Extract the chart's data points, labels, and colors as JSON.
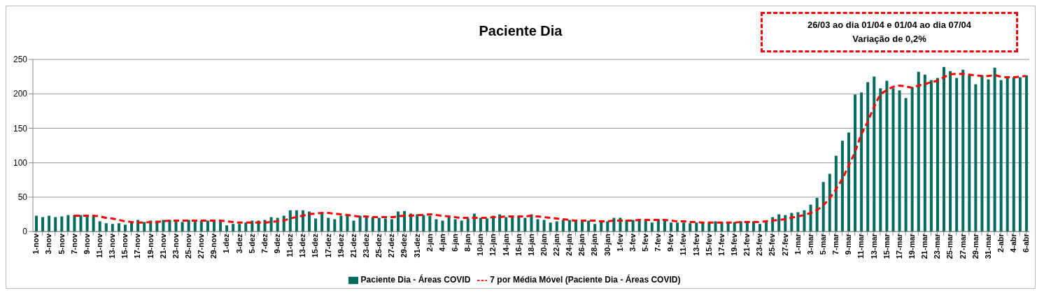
{
  "chart_data": {
    "type": "bar",
    "title": "Paciente Dia",
    "annotations": [
      "26/03 ao dia 01/04 e 01/04 ao dia 07/04",
      "Variação de 0,2%"
    ],
    "categories": [
      "1-nov",
      null,
      "3-nov",
      null,
      "5-nov",
      null,
      "7-nov",
      null,
      "9-nov",
      null,
      "11-nov",
      null,
      "13-nov",
      null,
      "15-nov",
      null,
      "17-nov",
      null,
      "19-nov",
      null,
      "21-nov",
      null,
      "23-nov",
      null,
      "25-nov",
      null,
      "27-nov",
      null,
      "29-nov",
      null,
      "1-dez",
      null,
      "3-dez",
      null,
      "5-dez",
      null,
      "7-dez",
      null,
      "9-dez",
      null,
      "11-dez",
      null,
      "13-dez",
      null,
      "15-dez",
      null,
      "17-dez",
      null,
      "19-dez",
      null,
      "21-dez",
      null,
      "23-dez",
      null,
      "25-dez",
      null,
      "27-dez",
      null,
      "29-dez",
      null,
      "31-dez",
      null,
      "2-jan",
      null,
      "4-jan",
      null,
      "6-jan",
      null,
      "8-jan",
      null,
      "10-jan",
      null,
      "12-jan",
      null,
      "14-jan",
      null,
      "16-jan",
      null,
      "18-jan",
      null,
      "20-jan",
      null,
      "22-jan",
      null,
      "24-jan",
      null,
      "26-jan",
      null,
      "28-jan",
      null,
      "30-jan",
      null,
      "1-fev",
      null,
      "3-fev",
      null,
      "5-fev",
      null,
      "7-fev",
      null,
      "9-fev",
      null,
      "11-fev",
      null,
      "13-fev",
      null,
      "15-fev",
      null,
      "17-fev",
      null,
      "19-fev",
      null,
      "21-fev",
      null,
      "23-fev",
      null,
      "25-fev",
      null,
      "27-fev",
      null,
      "1-mar",
      null,
      "3-mar",
      null,
      "5-mar",
      null,
      "7-mar",
      null,
      "9-mar",
      null,
      "11-mar",
      null,
      "13-mar",
      null,
      "15-mar",
      null,
      "17-mar",
      null,
      "19-mar",
      null,
      "21-mar",
      null,
      "23-mar",
      null,
      "25-mar",
      null,
      "27-mar",
      null,
      "29-mar",
      null,
      "31-mar",
      null,
      "2-abr",
      null,
      "4-abr",
      null,
      "6-abr"
    ],
    "series": [
      {
        "name": "Paciente Dia - Áreas COVID",
        "color": "#006b5e",
        "values": [
          23,
          21,
          23,
          21,
          22,
          24,
          24,
          24,
          24,
          22,
          15,
          12,
          11,
          12,
          10,
          15,
          17,
          14,
          16,
          16,
          17,
          17,
          17,
          14,
          17,
          17,
          16,
          16,
          15,
          15,
          9,
          11,
          11,
          13,
          16,
          16,
          17,
          21,
          20,
          23,
          31,
          31,
          31,
          29,
          19,
          27,
          20,
          18,
          23,
          23,
          16,
          23,
          23,
          21,
          20,
          19,
          18,
          29,
          30,
          26,
          25,
          24,
          23,
          18,
          16,
          22,
          18,
          16,
          19,
          26,
          20,
          19,
          23,
          25,
          21,
          21,
          22,
          20,
          25,
          18,
          17,
          13,
          15,
          17,
          17,
          16,
          16,
          16,
          11,
          14,
          15,
          20,
          20,
          17,
          17,
          17,
          17,
          13,
          18,
          17,
          13,
          13,
          13,
          12,
          13,
          13,
          13,
          15,
          14,
          13,
          14,
          15,
          15,
          15,
          11,
          14,
          21,
          25,
          24,
          27,
          28,
          31,
          39,
          49,
          72,
          84,
          110,
          132,
          144,
          199,
          202,
          217,
          225,
          208,
          219,
          208,
          205,
          194,
          210,
          232,
          228,
          220,
          223,
          239,
          233,
          223,
          235,
          227,
          214,
          227,
          221,
          238,
          220,
          224,
          224,
          224,
          227
        ]
      },
      {
        "name": "7 por Média Móvel (Paciente Dia - Áreas COVID)",
        "type": "line",
        "color": "#ff0000",
        "values": [
          null,
          null,
          null,
          null,
          null,
          null,
          23,
          23,
          23,
          23,
          22,
          20,
          19,
          17,
          15,
          14,
          13,
          13,
          14,
          14,
          15,
          16,
          16,
          16,
          16,
          16,
          16,
          16,
          16,
          16,
          15,
          14,
          13,
          13,
          13,
          13,
          13,
          14,
          15,
          16,
          19,
          21,
          23,
          25,
          26,
          27,
          27,
          26,
          25,
          24,
          23,
          22,
          22,
          21,
          21,
          21,
          21,
          22,
          23,
          23,
          24,
          24,
          25,
          24,
          23,
          22,
          21,
          20,
          20,
          20,
          20,
          20,
          21,
          21,
          22,
          22,
          22,
          22,
          23,
          22,
          21,
          20,
          19,
          18,
          17,
          16,
          16,
          16,
          16,
          15,
          15,
          16,
          16,
          16,
          16,
          17,
          17,
          17,
          17,
          17,
          16,
          15,
          15,
          14,
          14,
          13,
          13,
          13,
          13,
          13,
          13,
          14,
          14,
          14,
          14,
          15,
          16,
          17,
          18,
          20,
          22,
          24,
          27,
          31,
          38,
          48,
          61,
          76,
          95,
          115,
          140,
          159,
          180,
          198,
          205,
          210,
          212,
          211,
          209,
          212,
          214,
          217,
          219,
          224,
          228,
          229,
          229,
          228,
          227,
          226,
          226,
          227,
          225,
          224,
          224,
          225,
          226
        ]
      }
    ],
    "ylim": [
      0,
      250
    ],
    "yticks": [
      0,
      50,
      100,
      150,
      200,
      250
    ],
    "grid": "y",
    "legend": "bottom",
    "marker": "none",
    "line_style": "dashed"
  }
}
